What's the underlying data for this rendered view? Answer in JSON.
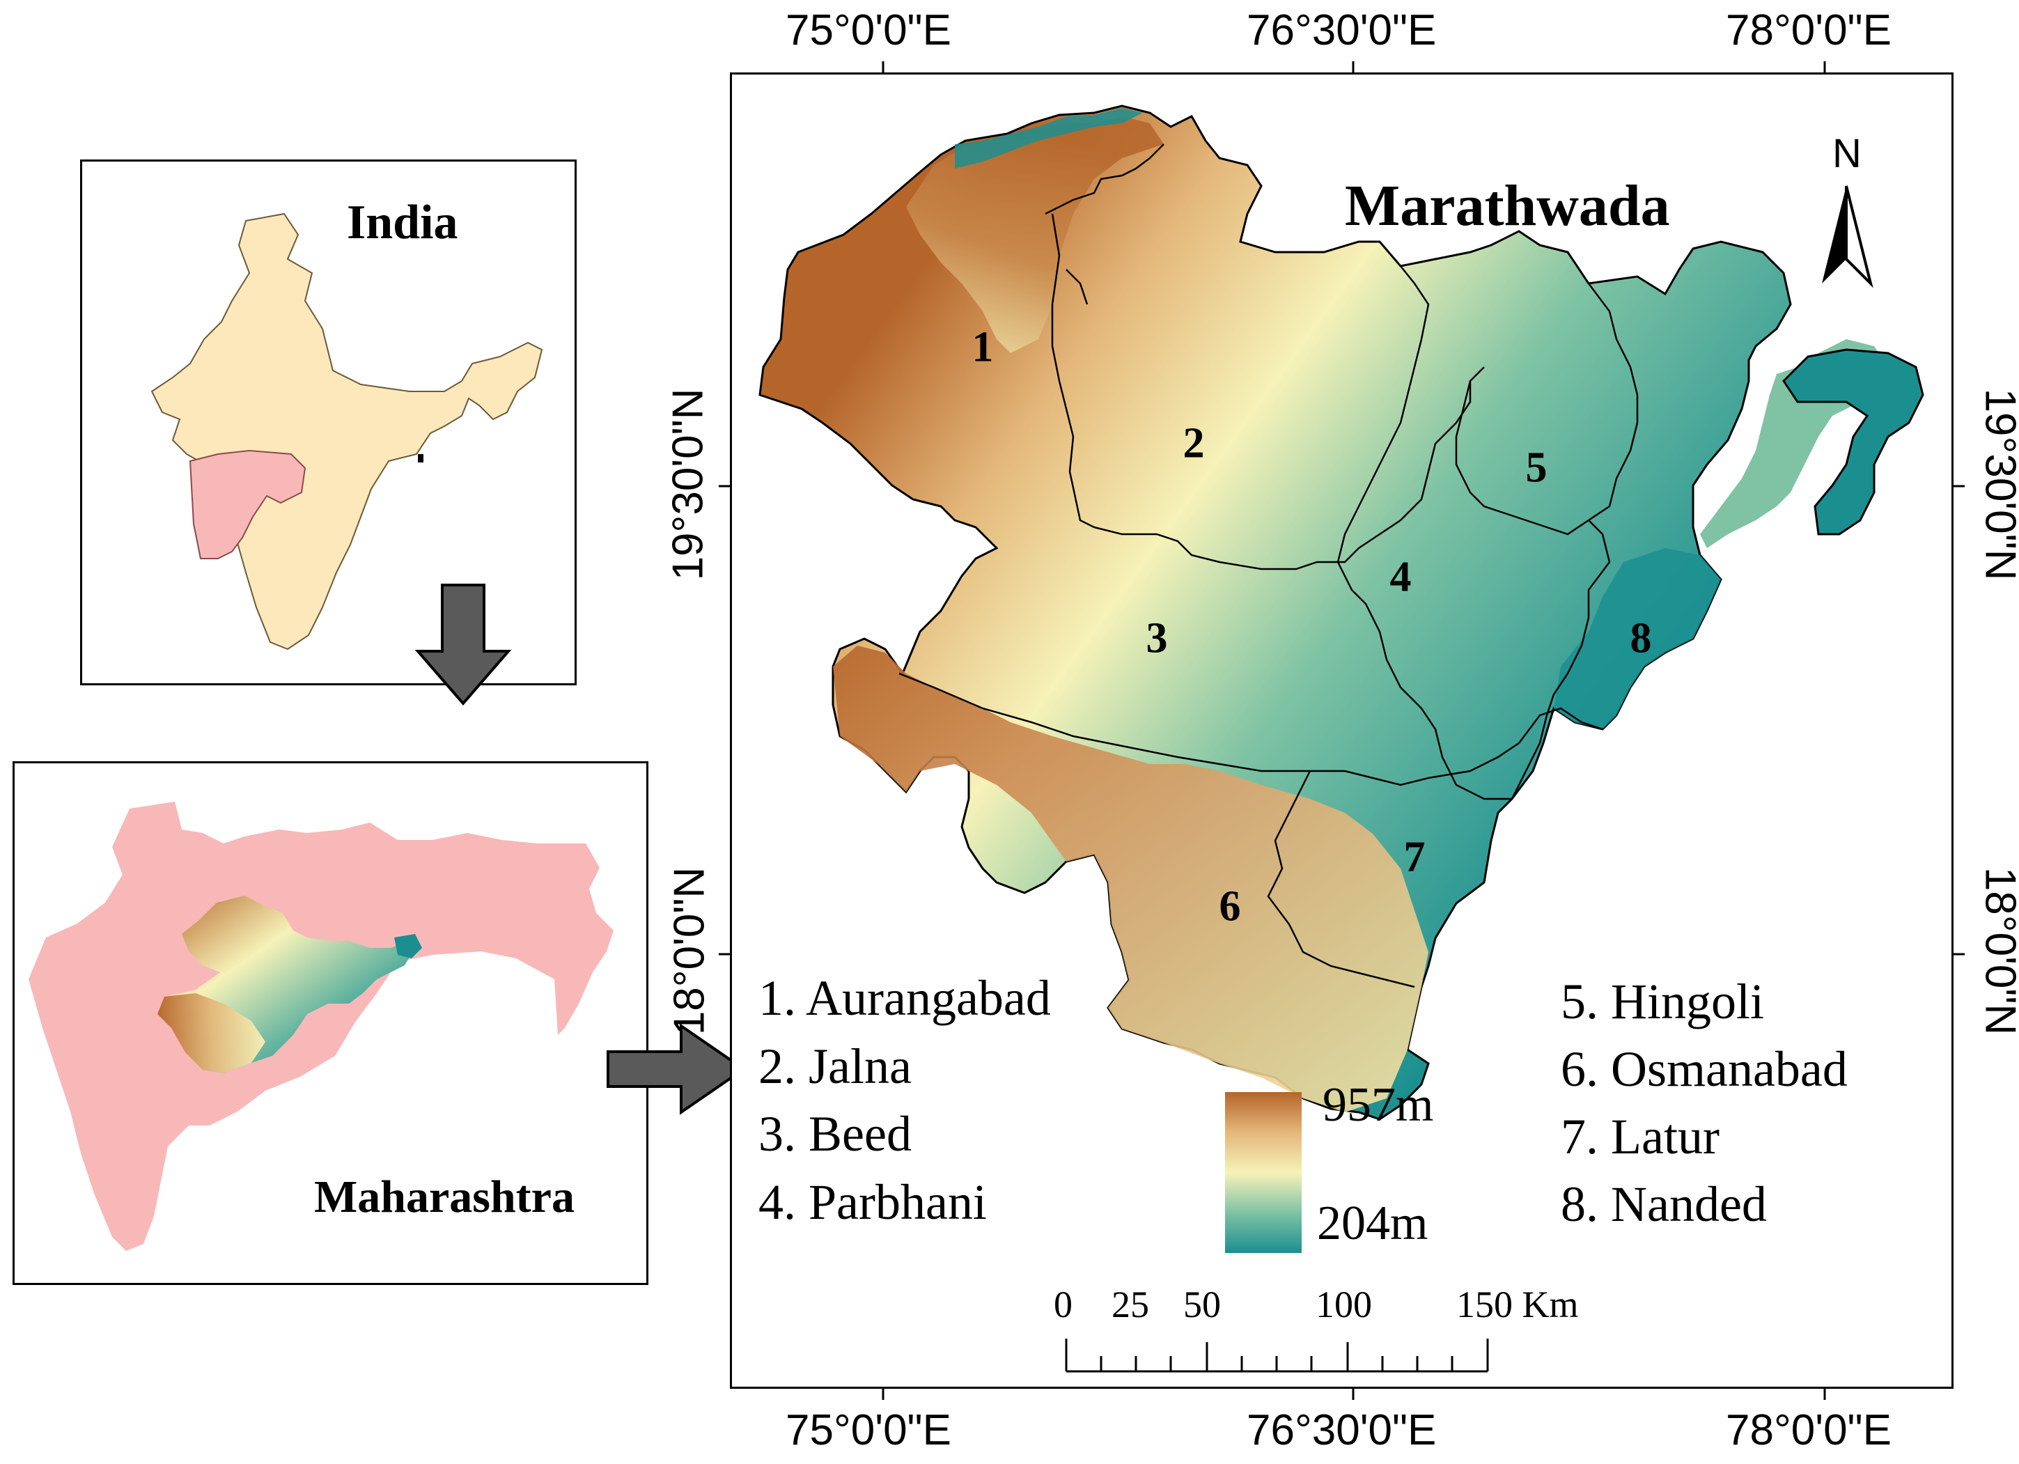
{
  "india_inset": {
    "title": "India"
  },
  "maharashtra_inset": {
    "title": "Maharashtra"
  },
  "main_map": {
    "title": "Marathwada",
    "north_label": "N",
    "coords_top": [
      "75°0'0\"E",
      "76°30'0\"E",
      "78°0'0\"E"
    ],
    "coords_bottom": [
      "75°0'0\"E",
      "76°30'0\"E",
      "78°0'0\"E"
    ],
    "coords_left": [
      "19°30'0\"N",
      "18°0'0\"N"
    ],
    "coords_right": [
      "19°30'0\"N",
      "18°0'0\"N"
    ],
    "district_numbers": [
      "1",
      "2",
      "3",
      "4",
      "5",
      "6",
      "7",
      "8"
    ],
    "legend_left": [
      "1. Aurangabad",
      "2. Jalna",
      "3. Beed",
      "4. Parbhani"
    ],
    "legend_right": [
      "5. Hingoli",
      "6. Osmanabad",
      "7. Latur",
      "8. Nanded"
    ],
    "elevation_max": "957m",
    "elevation_min": "204m",
    "scale_labels": [
      "0",
      "25",
      "50",
      "100",
      "150 Km"
    ]
  },
  "colors": {
    "india_fill": "#fde8bb",
    "maharashtra_fill": "#f8b8b8",
    "elev_high": "#b5652a",
    "elev_mid_high": "#e4b77a",
    "elev_mid": "#f6f2b8",
    "elev_mid_low": "#7fc3a4",
    "elev_low": "#1b8f90",
    "arrow_fill": "#5a5a5a"
  }
}
